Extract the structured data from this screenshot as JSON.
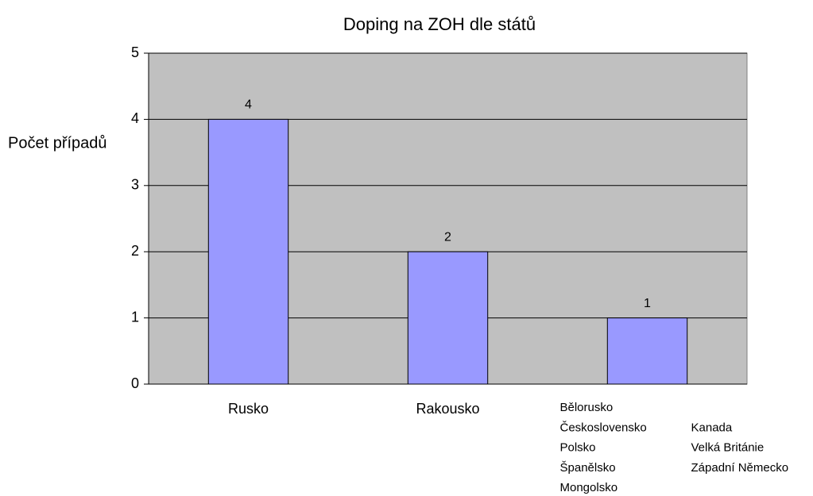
{
  "chart_data": {
    "type": "bar",
    "title": "Doping na ZOH dle států",
    "y_label": "Počet případů",
    "categories": [
      "Rusko",
      "Rakousko",
      [
        [
          "Bělorusko",
          "Československo",
          "Polsko",
          "Španělsko",
          "Mongolsko"
        ],
        [
          "Kanada",
          "Velká Británie",
          "Západní Německo"
        ]
      ]
    ],
    "values": [
      4,
      2,
      1
    ],
    "color": "#9999ff",
    "plot_background": "#c0c0c0",
    "ylim": [
      0,
      5
    ],
    "yticks": [
      0,
      1,
      2,
      3,
      4,
      5
    ],
    "grid": true
  }
}
